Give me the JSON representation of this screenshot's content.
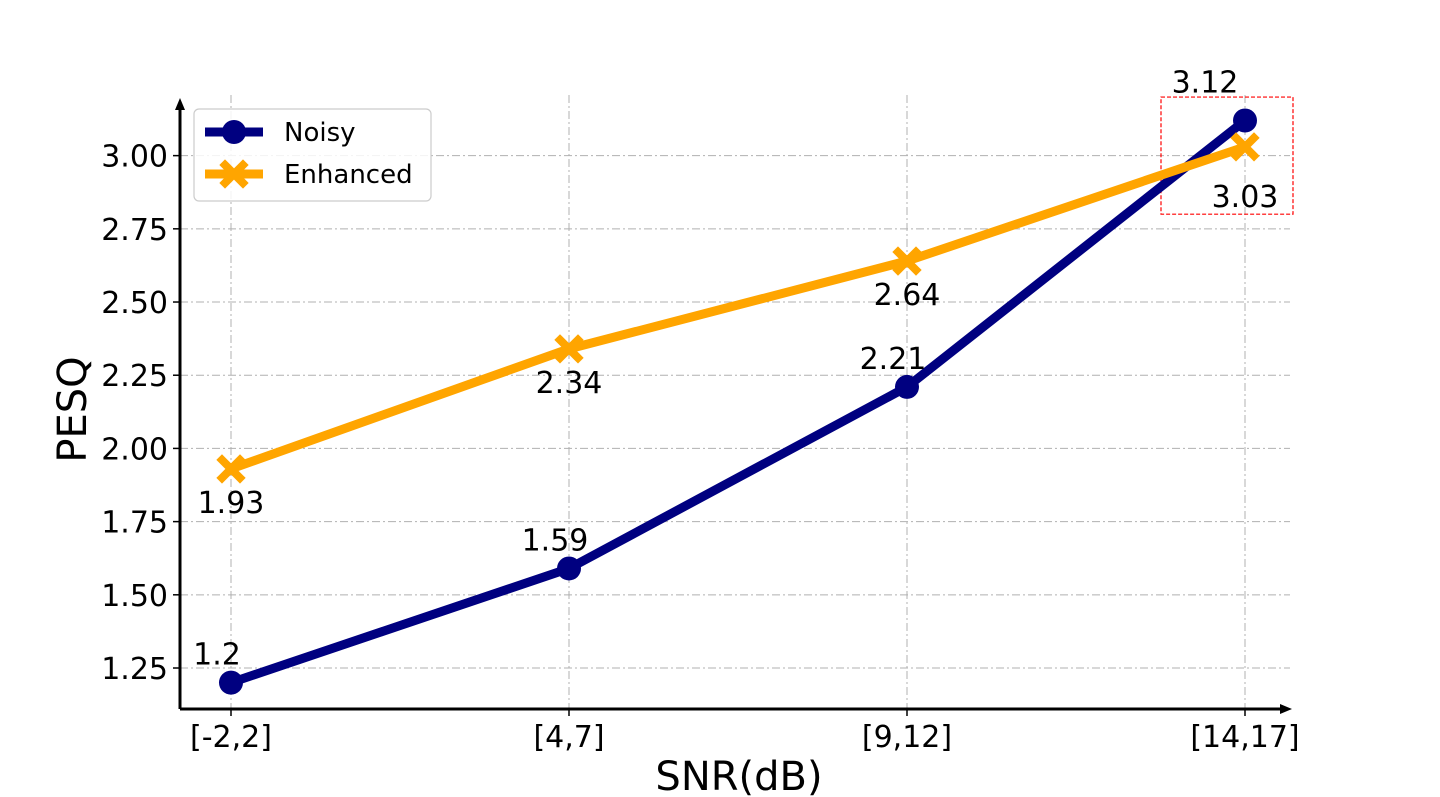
{
  "chart_data": {
    "type": "line",
    "categories": [
      "[-2,2]",
      "[4,7]",
      "[9,12]",
      "[14,17]"
    ],
    "series": [
      {
        "name": "Noisy",
        "values": [
          1.2,
          1.59,
          2.21,
          3.12
        ],
        "labels": [
          "1.2",
          "1.59",
          "2.21",
          "3.12"
        ],
        "color": "#000080",
        "marker": "circle"
      },
      {
        "name": "Enhanced",
        "values": [
          1.93,
          2.34,
          2.64,
          3.03
        ],
        "labels": [
          "1.93",
          "2.34",
          "2.64",
          "3.03"
        ],
        "color": "#FFA500",
        "marker": "x"
      }
    ],
    "xlabel": "SNR(dB)",
    "ylabel": "PESQ",
    "ylim": [
      1.11,
      3.19
    ],
    "yticks": [
      "1.25",
      "1.50",
      "1.75",
      "2.00",
      "2.25",
      "2.50",
      "2.75",
      "3.00"
    ],
    "grid": true,
    "legend_position": "top-left",
    "highlight": {
      "category": "[14,17]",
      "y_range": [
        2.8,
        3.2
      ],
      "color": "#FF0000",
      "style": "dashed"
    }
  }
}
